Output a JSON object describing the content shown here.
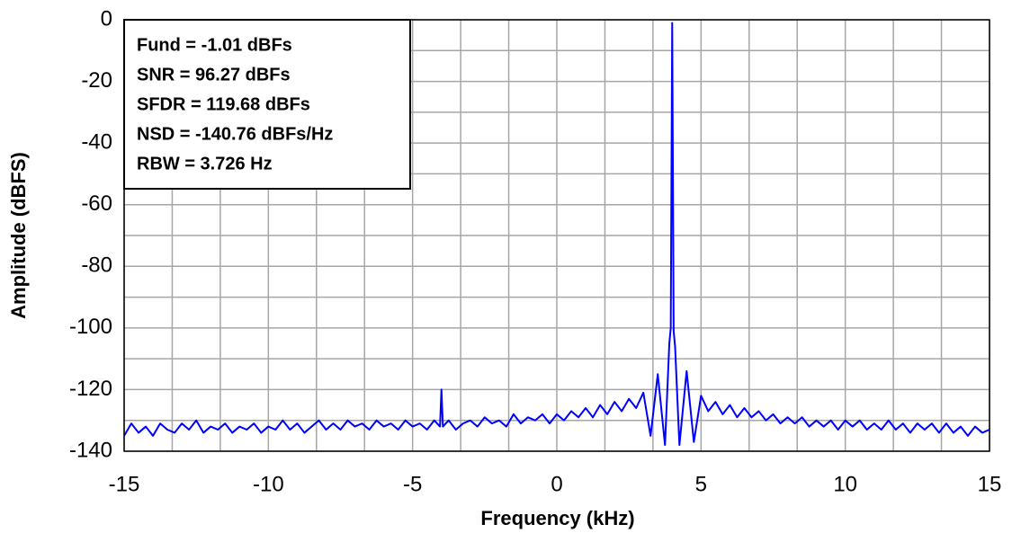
{
  "chart_data": {
    "type": "line",
    "x_label": "Frequency (kHz)",
    "y_label": "Amplitude (dBFS)",
    "annotations": [
      "Fund = -1.01 dBFs",
      "SNR = 96.27 dBFs",
      "SFDR = 119.68 dBFs",
      "NSD = -140.76 dBFs/Hz",
      "RBW = 3.726 Hz"
    ],
    "xlim": [
      -15,
      15
    ],
    "ylim": [
      -140,
      0
    ],
    "xticks": [
      -15,
      -10,
      -5,
      0,
      5,
      10,
      15
    ],
    "yticks": [
      -140,
      -120,
      -100,
      -80,
      -60,
      -40,
      -20,
      0
    ],
    "x_minor_grid": [
      -13.333,
      -11.667,
      -8.333,
      -6.667,
      -3.333,
      -1.667,
      1.667,
      3.333,
      6.667,
      8.333,
      11.667,
      13.333
    ],
    "y_minor_grid": [
      -130,
      -110,
      -90,
      -70,
      -50,
      -30,
      -10
    ],
    "grid": true,
    "x": [
      -15,
      -14.75,
      -14.5,
      -14.25,
      -14,
      -13.75,
      -13.5,
      -13.25,
      -13,
      -12.75,
      -12.5,
      -12.25,
      -12,
      -11.75,
      -11.5,
      -11.25,
      -11,
      -10.75,
      -10.5,
      -10.25,
      -10,
      -9.75,
      -9.5,
      -9.25,
      -9,
      -8.75,
      -8.5,
      -8.25,
      -8,
      -7.75,
      -7.5,
      -7.25,
      -7,
      -6.75,
      -6.5,
      -6.25,
      -6,
      -5.75,
      -5.5,
      -5.25,
      -5,
      -4.75,
      -4.5,
      -4.25,
      -4.05,
      -4,
      -3.95,
      -3.75,
      -3.5,
      -3.25,
      -3,
      -2.75,
      -2.5,
      -2.25,
      -2,
      -1.75,
      -1.5,
      -1.25,
      -1,
      -0.75,
      -0.5,
      -0.25,
      0,
      0.25,
      0.5,
      0.75,
      1,
      1.25,
      1.5,
      1.75,
      2,
      2.25,
      2.5,
      2.75,
      3,
      3.25,
      3.5,
      3.75,
      3.9,
      3.95,
      4,
      4.05,
      4.1,
      4.25,
      4.5,
      4.75,
      5,
      5.25,
      5.5,
      5.75,
      6,
      6.25,
      6.5,
      6.75,
      7,
      7.25,
      7.5,
      7.75,
      8,
      8.25,
      8.5,
      8.75,
      9,
      9.25,
      9.5,
      9.75,
      10,
      10.25,
      10.5,
      10.75,
      11,
      11.25,
      11.5,
      11.75,
      12,
      12.25,
      12.5,
      12.75,
      13,
      13.25,
      13.5,
      13.75,
      14,
      14.25,
      14.5,
      14.75,
      15
    ],
    "series": [
      {
        "color": "#0000ff",
        "values": [
          -135,
          -131,
          -134,
          -132,
          -135,
          -131,
          -133,
          -134,
          -131,
          -133,
          -130,
          -134,
          -132,
          -133,
          -131,
          -134,
          -132,
          -133,
          -131,
          -134,
          -132,
          -133,
          -130,
          -133,
          -131,
          -134,
          -132,
          -130,
          -133,
          -131,
          -133,
          -130,
          -132,
          -131,
          -133,
          -130,
          -132,
          -131,
          -133,
          -130,
          -132,
          -131,
          -133,
          -130,
          -132,
          -120,
          -132,
          -130,
          -133,
          -131,
          -130,
          -132,
          -129,
          -131,
          -130,
          -132,
          -128,
          -131,
          -129,
          -130,
          -128,
          -131,
          -128,
          -130,
          -127,
          -129,
          -126,
          -129,
          -125,
          -128,
          -124,
          -127,
          -123,
          -126,
          -121,
          -135,
          -115,
          -138,
          -105,
          -100,
          -1.01,
          -101,
          -106,
          -138,
          -114,
          -137,
          -122,
          -127,
          -124,
          -128,
          -125,
          -129,
          -126,
          -129,
          -127,
          -130,
          -128,
          -131,
          -129,
          -131,
          -129,
          -132,
          -130,
          -132,
          -130,
          -133,
          -130,
          -132,
          -130,
          -133,
          -131,
          -133,
          -130,
          -133,
          -131,
          -134,
          -131,
          -133,
          -131,
          -134,
          -131,
          -134,
          -132,
          -135,
          -132,
          -134,
          -133
        ]
      }
    ]
  }
}
